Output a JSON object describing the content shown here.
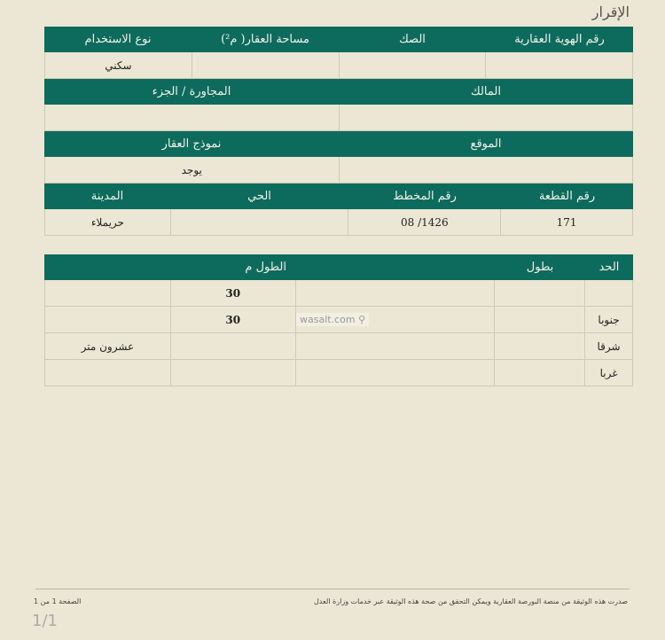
{
  "doc_title": "الإقرار",
  "section1": {
    "headers": [
      "رقم الهوية العقارية",
      "الصك",
      "مساحة العقار( م²)",
      "نوع الاستخدام"
    ],
    "values": [
      "",
      "",
      "",
      "سكني"
    ]
  },
  "section2": {
    "headers": [
      "المالك",
      "المجاورة / الجزء"
    ],
    "values": [
      "",
      ""
    ]
  },
  "section3": {
    "headers": [
      "الموقع",
      "نموذج العقار"
    ],
    "values": [
      "",
      "يوجد"
    ]
  },
  "section4": {
    "headers": [
      "رقم القطعة",
      "رقم المخطط",
      "الحي",
      "المدينة"
    ],
    "values": [
      "171",
      "1426/ 08",
      "",
      "حريملاء"
    ]
  },
  "bounds": {
    "headers": [
      "الحد",
      "بطول",
      "",
      "الطول م",
      ""
    ],
    "rows": [
      [
        "",
        "",
        "",
        "30",
        ""
      ],
      [
        "جنوبا",
        "",
        "",
        "30",
        ""
      ],
      [
        "شرقا",
        "",
        "",
        "",
        "عشرون متر"
      ],
      [
        "غربا",
        "",
        "",
        "",
        ""
      ]
    ]
  },
  "watermark": "wasalt.com ⚲",
  "footer": {
    "note": "صدرت هذه الوثيقة من منصة البورصة العقارية ويمكن التحقق من صحة هذه الوثيقة عبر خدمات وزارة العدل",
    "page": "الصفحة 1 من 1",
    "page_mark": "1/1"
  }
}
